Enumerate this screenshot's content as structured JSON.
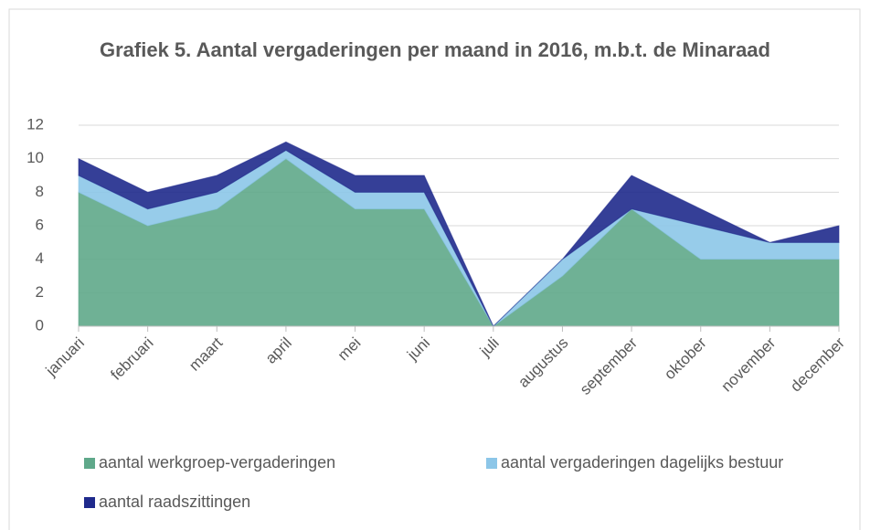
{
  "chart_data": {
    "type": "stacked_area",
    "title": "Grafiek 5. Aantal vergaderingen per maand in 2016, m.b.t. de Minaraad",
    "categories": [
      "januari",
      "februari",
      "maart",
      "april",
      "mei",
      "juni",
      "juli",
      "augustus",
      "september",
      "oktober",
      "november",
      "december"
    ],
    "series": [
      {
        "name": "aantal werkgroep-vergaderingen",
        "color": "#5fa88a",
        "values": [
          8,
          6,
          7,
          10,
          7,
          7,
          0,
          3,
          7,
          4,
          4,
          4
        ]
      },
      {
        "name": "aantal vergaderingen dagelijks bestuur",
        "color": "#8cc6e8",
        "values": [
          1,
          1,
          1,
          0.5,
          1,
          1,
          0,
          1,
          0,
          2,
          1,
          1
        ]
      },
      {
        "name": "aantal raadszittingen",
        "color": "#1f2a8c",
        "values": [
          1,
          1,
          1,
          0.5,
          1,
          1,
          0,
          0,
          2,
          1,
          0,
          1
        ]
      }
    ],
    "ylim": [
      0,
      12
    ],
    "yticks": [
      0,
      2,
      4,
      6,
      8,
      10,
      12
    ],
    "grid": true,
    "legend": "bottom"
  }
}
